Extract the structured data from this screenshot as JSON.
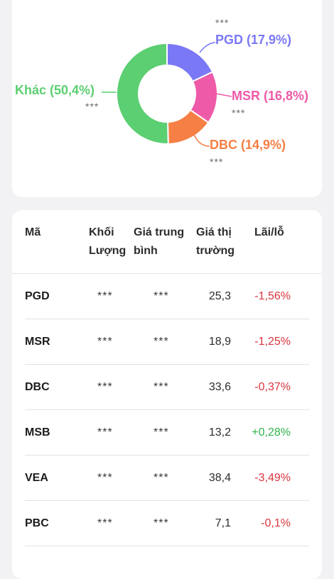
{
  "colors": {
    "pgd": "#7a78f5",
    "msr": "#ef5aa8",
    "dbc": "#f57f45",
    "khac": "#5ccf72",
    "negative": "#d9363e",
    "positive": "#2fb34a"
  },
  "chart_data": {
    "type": "pie",
    "style": "donut",
    "slices": [
      {
        "label": "PGD (17,9%)",
        "value": 17.9,
        "masked_value": "***",
        "color": "#7a78f5"
      },
      {
        "label": "MSR (16,8%)",
        "value": 16.8,
        "masked_value": "***",
        "color": "#ef5aa8"
      },
      {
        "label": "DBC (14,9%)",
        "value": 14.9,
        "masked_value": "***",
        "color": "#f57f45"
      },
      {
        "label": "Khác (50,4%)",
        "value": 50.4,
        "masked_value": "***",
        "color": "#5ccf72"
      }
    ]
  },
  "table": {
    "headers": {
      "code": "Mã",
      "volume_1": "Khối",
      "volume_2": "Lượng",
      "avg_1": "Giá trung",
      "avg_2": "bình",
      "market_1": "Giá thị",
      "market_2": "trường",
      "pl": "Lãi/lỗ"
    },
    "rows": [
      {
        "code": "PGD",
        "volume": "***",
        "avg_price": "***",
        "market_price": "25,3",
        "pl": "-1,56%",
        "trend": "neg"
      },
      {
        "code": "MSR",
        "volume": "***",
        "avg_price": "***",
        "market_price": "18,9",
        "pl": "-1,25%",
        "trend": "neg"
      },
      {
        "code": "DBC",
        "volume": "***",
        "avg_price": "***",
        "market_price": "33,6",
        "pl": "-0,37%",
        "trend": "neg"
      },
      {
        "code": "MSB",
        "volume": "***",
        "avg_price": "***",
        "market_price": "13,2",
        "pl": "+0,28%",
        "trend": "pos"
      },
      {
        "code": "VEA",
        "volume": "***",
        "avg_price": "***",
        "market_price": "38,4",
        "pl": "-3,49%",
        "trend": "neg"
      },
      {
        "code": "PBC",
        "volume": "***",
        "avg_price": "***",
        "market_price": "7,1",
        "pl": "-0,1%",
        "trend": "neg"
      }
    ]
  }
}
